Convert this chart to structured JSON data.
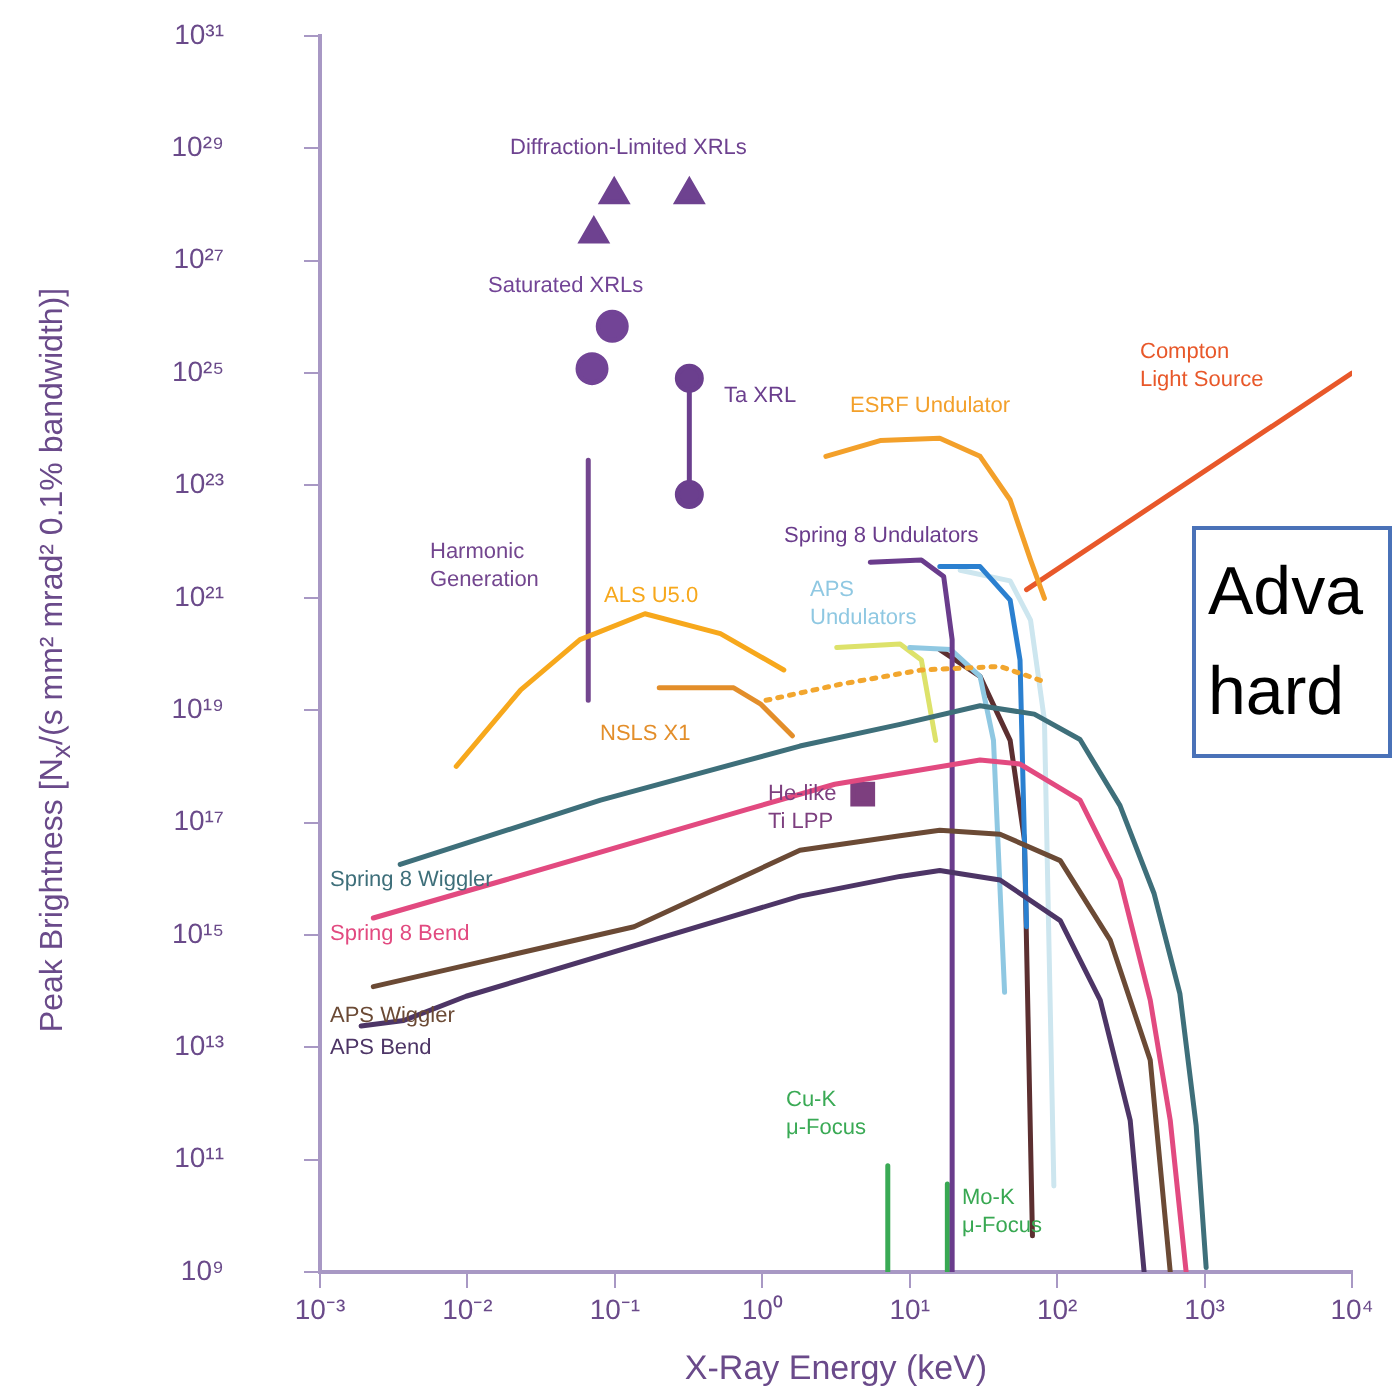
{
  "chart_data": {
    "type": "line",
    "xlabel": "X-Ray Energy (keV)",
    "ylabel": "Peak Brightness [N$_{x}$/(s mm² mrad² 0.1% bandwidth)]",
    "log": "xy",
    "xlim": [
      0.001,
      10000
    ],
    "xticks": [
      {
        "value": 0.001,
        "label": "10⁻³"
      },
      {
        "value": 0.01,
        "label": "10⁻²"
      },
      {
        "value": 0.1,
        "label": "10⁻¹"
      },
      {
        "value": 1,
        "label": "10⁰"
      },
      {
        "value": 10,
        "label": "10¹"
      },
      {
        "value": 100,
        "label": "10²"
      },
      {
        "value": 1000,
        "label": "10³"
      },
      {
        "value": 10000,
        "label": "10⁴"
      }
    ],
    "ylim": [
      1000000000.0,
      1e+31
    ],
    "yticks": [
      {
        "value": 1000000000.0,
        "label": "10⁹"
      },
      {
        "value": 100000000000.0,
        "label": "10¹¹"
      },
      {
        "value": 10000000000000.0,
        "label": "10¹³"
      },
      {
        "value": 1000000000000000.0,
        "label": "10¹⁵"
      },
      {
        "value": 1e+17,
        "label": "10¹⁷"
      },
      {
        "value": 1e+19,
        "label": "10¹⁹"
      },
      {
        "value": 1e+21,
        "label": "10²¹"
      },
      {
        "value": 1e+23,
        "label": "10²³"
      },
      {
        "value": 1e+25,
        "label": "10²⁵"
      },
      {
        "value": 1e+27,
        "label": "10²⁷"
      },
      {
        "value": 1e+29,
        "label": "10²⁹"
      },
      {
        "value": 1e+31,
        "label": "10³¹"
      }
    ],
    "grid": false,
    "series": [
      {
        "name": "Spring 8 Wiggler",
        "type": "line",
        "color": "#3e6f7a",
        "marker": "none",
        "x": [
          0.0035,
          0.08,
          1.8,
          8.6,
          30,
          70,
          143,
          267,
          455,
          680,
          877,
          1025
        ],
        "values": [
          1.8e+16,
          2.5e+17,
          2.3e+18,
          5.6e+18,
          1.2e+19,
          8.5e+18,
          3e+18,
          2e+17,
          5400000000000000.0,
          90000000000000.0,
          400000000000.0,
          1200000000.0
        ]
      },
      {
        "name": "Spring 8 Bend",
        "type": "line",
        "color": "#e24a80",
        "marker": "none",
        "x": [
          0.0023,
          0.018,
          0.78,
          3.1,
          30,
          56,
          143,
          267,
          428,
          585,
          750
        ],
        "values": [
          2000000000000000.0,
          9500000000000000.0,
          1.7e+17,
          4.8e+17,
          1.3e+18,
          1.1e+18,
          2.5e+17,
          9500000000000000.0,
          69000000000000.0,
          500000000000.0,
          1000000000.0
        ]
      },
      {
        "name": "APS Wiggler",
        "type": "line",
        "color": "#6b4a35",
        "marker": "none",
        "x": [
          0.0023,
          0.135,
          1.8,
          8.6,
          16,
          41,
          105,
          229,
          428,
          585
        ],
        "values": [
          120000000000000.0,
          1400000000000000.0,
          3.2e+16,
          5.8e+16,
          7.3e+16,
          6.2e+16,
          2.1e+16,
          810000000000000.0,
          5900000000000.0,
          1000000000.0
        ]
      },
      {
        "name": "APS Bend",
        "type": "line",
        "color": "#4d3566",
        "marker": "none",
        "x": [
          0.0019,
          0.0037,
          0.0098,
          1.8,
          8.6,
          16,
          41,
          105,
          196,
          313,
          389
        ],
        "values": [
          24000000000000.0,
          30000000000000.0,
          81000000000000.0,
          4900000000000000.0,
          1.1e+16,
          1.4e+16,
          9500000000000000.0,
          1800000000000000.0,
          69000000000000.0,
          500000000000.0,
          1000000000.0
        ]
      },
      {
        "name": "ALS U5.0",
        "type": "line",
        "color": "#f7a81c",
        "marker": "none",
        "x": [
          0.0084,
          0.023,
          0.058,
          0.16,
          0.52,
          1.4
        ],
        "values": [
          1e+18,
          2.3e+19,
          1.8e+20,
          5.2e+20,
          2.3e+20,
          5.2e+19
        ]
      },
      {
        "name": "NSLS X1",
        "type": "line",
        "color": "#e38e2a",
        "marker": "none",
        "x": [
          0.2,
          0.64,
          0.97,
          1.6
        ],
        "values": [
          2.5e+19,
          2.5e+19,
          1.3e+19,
          3.5e+18
        ]
      },
      {
        "type": "line",
        "color": "#f2a62e",
        "marker": "none",
        "line_style": "dotted",
        "x": [
          1.06,
          3.4,
          12,
          41,
          77
        ],
        "values": [
          1.5e+19,
          2.9e+19,
          5.2e+19,
          6e+19,
          3.4e+19
        ]
      },
      {
        "name": "ESRF Undulator",
        "type": "line",
        "color": "#f3a02a",
        "marker": "none",
        "x": [
          2.7,
          6.3,
          16,
          30,
          48,
          66,
          82
        ],
        "values": [
          3.3e+23,
          6.3e+23,
          6.9e+23,
          3.3e+23,
          5.5e+22,
          4.7e+21,
          9.8e+20
        ]
      },
      {
        "name": "Compton\nLight Source",
        "type": "line",
        "color": "#e8582a",
        "marker": "none",
        "x": [
          62,
          10000
        ],
        "values": [
          1.4e+21,
          1e+25
        ]
      },
      {
        "name": "Spring 8 Undulators",
        "type": "line",
        "color": "#6a3c8c",
        "marker": "none",
        "x": [
          5.4,
          12,
          17,
          19.4,
          19.4
        ],
        "values": [
          4.3e+21,
          4.7e+21,
          2.4e+21,
          1.8e+20,
          1000000000.0
        ]
      },
      {
        "type": "line",
        "color": "#2b80d0",
        "marker": "none",
        "x": [
          16,
          30,
          48,
          56,
          62
        ],
        "values": [
          3.6e+21,
          3.6e+21,
          9.1e+20,
          7.8e+19,
          1400000000000000.0
        ]
      },
      {
        "name": "APS\nUndulators",
        "type": "line",
        "color": "#8fc8e2",
        "marker": "none",
        "x": [
          10,
          19,
          30,
          37,
          44
        ],
        "values": [
          1.3e+20,
          1.2e+20,
          4e+19,
          2.9e+18,
          95000000000000.0
        ]
      },
      {
        "type": "line",
        "color": "#cde6ef",
        "marker": "none",
        "x": [
          22,
          48,
          66,
          82,
          95
        ],
        "values": [
          3.1e+21,
          2e+21,
          4e+20,
          6.6e+18,
          34000000000.0
        ]
      },
      {
        "type": "line",
        "color": "#dde26a",
        "marker": "none",
        "x": [
          3.2,
          8.6,
          12,
          15
        ],
        "values": [
          1.3e+20,
          1.5e+20,
          7.8e+19,
          2.9e+18
        ]
      },
      {
        "type": "line",
        "color": "#5c2f30",
        "marker": "none",
        "x": [
          16,
          30,
          48,
          60,
          68
        ],
        "values": [
          1.2e+20,
          4e+19,
          2.9e+18,
          4.9e+16,
          4400000000.0
        ]
      },
      {
        "name": "Diffraction-Limited XRLs",
        "type": "scatter",
        "color": "#6e4290",
        "marker": "triangle",
        "x": [
          0.072,
          0.099,
          0.32
        ],
        "values": [
          3e+27,
          1.5e+28,
          1.5e+28
        ]
      },
      {
        "name": "Saturated XRLs",
        "type": "scatter",
        "color": "#724496",
        "marker": "circle",
        "x": [
          0.096,
          0.07
        ],
        "values": [
          6.8e+25,
          1.2e+25
        ]
      },
      {
        "name": "Ta XRL",
        "type": "line",
        "color": "#6b3f8e",
        "marker": "circle",
        "x": [
          0.32,
          0.32
        ],
        "values": [
          6.9e+22,
          8.1e+24
        ]
      },
      {
        "name": "Harmonic\nGeneration",
        "type": "line",
        "color": "#73468f",
        "marker": "none",
        "x": [
          0.066,
          0.066
        ],
        "values": [
          2.8e+23,
          1.5e+19
        ]
      },
      {
        "name": "He-like\nTi LPP",
        "type": "scatter",
        "color": "#7d3f7f",
        "marker": "square",
        "x": [
          4.8
        ],
        "values": [
          3.2e+17
        ]
      },
      {
        "name": "Cu-K\nμ-Focus",
        "type": "line",
        "color": "#3aaa55",
        "marker": "none",
        "x": [
          7.1,
          7.1
        ],
        "values": [
          78000000000.0,
          1000000000.0
        ]
      },
      {
        "name": "Mo-K\nμ-Focus",
        "type": "line",
        "color": "#38a852",
        "marker": "none",
        "x": [
          18,
          18
        ],
        "values": [
          37000000000.0,
          1000000000.0
        ]
      }
    ],
    "annotations": [
      "Adva\nhard"
    ]
  }
}
